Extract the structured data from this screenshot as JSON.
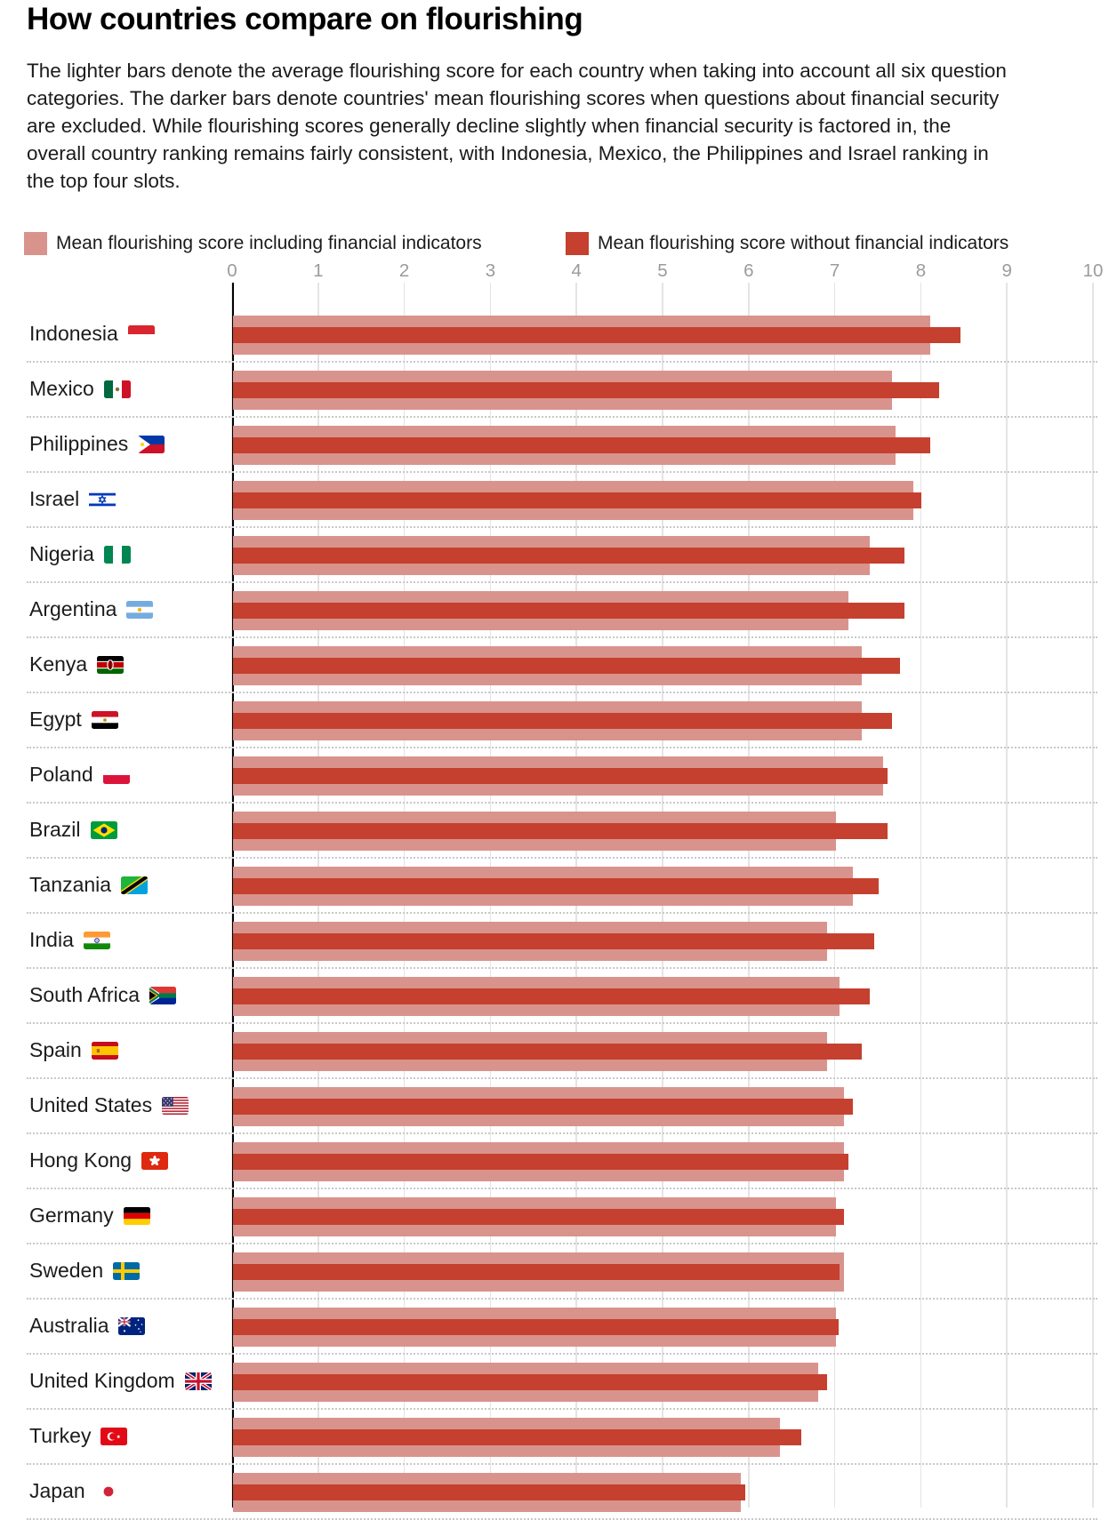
{
  "title": "How countries compare on flourishing",
  "description": "The lighter bars denote the average flourishing score for each country when taking into account all six question categories. The darker bars denote countries' mean flourishing scores when questions about financial security are excluded. While flourishing scores generally decline slightly when financial security is factored in, the overall country ranking remains fairly consistent, with Indonesia, Mexico, the Philippines and Israel ranking in the top four slots.",
  "legend": {
    "items": [
      {
        "label": "Mean flourishing score including financial indicators",
        "color": "#d9938d"
      },
      {
        "label": "Mean flourishing score without financial indicators",
        "color": "#c5402f"
      }
    ]
  },
  "colors": {
    "bar_light": "#d9938d",
    "bar_dark": "#c5402f",
    "axis_text": "#9b9b9b",
    "gridline": "#e4e4e4",
    "separator": "#c9c9c9",
    "axis_line": "#000000"
  },
  "chart_data": {
    "type": "bar",
    "orientation": "horizontal",
    "title": "How countries compare on flourishing",
    "x_axis": {
      "min": 0,
      "max": 10,
      "ticks": [
        0,
        1,
        2,
        3,
        4,
        5,
        6,
        7,
        8,
        9,
        10
      ],
      "grid": true
    },
    "legend_position": "top",
    "series": [
      {
        "name": "Mean flourishing score including financial indicators",
        "key": "score_including",
        "color": "#d9938d"
      },
      {
        "name": "Mean flourishing score without financial indicators",
        "key": "score_without",
        "color": "#c5402f"
      }
    ],
    "countries": [
      {
        "name": "Indonesia",
        "flag": "id",
        "score_including": 8.1,
        "score_without": 8.45
      },
      {
        "name": "Mexico",
        "flag": "mx",
        "score_including": 7.65,
        "score_without": 8.2
      },
      {
        "name": "Philippines",
        "flag": "ph",
        "score_including": 7.7,
        "score_without": 8.1
      },
      {
        "name": "Israel",
        "flag": "il",
        "score_including": 7.9,
        "score_without": 8.0
      },
      {
        "name": "Nigeria",
        "flag": "ng",
        "score_including": 7.4,
        "score_without": 7.8
      },
      {
        "name": "Argentina",
        "flag": "ar",
        "score_including": 7.15,
        "score_without": 7.8
      },
      {
        "name": "Kenya",
        "flag": "ke",
        "score_including": 7.3,
        "score_without": 7.75
      },
      {
        "name": "Egypt",
        "flag": "eg",
        "score_including": 7.3,
        "score_without": 7.65
      },
      {
        "name": "Poland",
        "flag": "pl",
        "score_including": 7.55,
        "score_without": 7.6
      },
      {
        "name": "Brazil",
        "flag": "br",
        "score_including": 7.0,
        "score_without": 7.6
      },
      {
        "name": "Tanzania",
        "flag": "tz",
        "score_including": 7.2,
        "score_without": 7.5
      },
      {
        "name": "India",
        "flag": "in",
        "score_including": 6.9,
        "score_without": 7.45
      },
      {
        "name": "South Africa",
        "flag": "za",
        "score_including": 7.05,
        "score_without": 7.4
      },
      {
        "name": "Spain",
        "flag": "es",
        "score_including": 6.9,
        "score_without": 7.3
      },
      {
        "name": "United States",
        "flag": "us",
        "score_including": 7.1,
        "score_without": 7.2
      },
      {
        "name": "Hong Kong",
        "flag": "hk",
        "score_including": 7.1,
        "score_without": 7.15
      },
      {
        "name": "Germany",
        "flag": "de",
        "score_including": 7.0,
        "score_without": 7.1
      },
      {
        "name": "Sweden",
        "flag": "se",
        "score_including": 7.1,
        "score_without": 7.05
      },
      {
        "name": "Australia",
        "flag": "au",
        "score_including": 7.0,
        "score_without": 7.03
      },
      {
        "name": "United Kingdom",
        "flag": "gb",
        "score_including": 6.8,
        "score_without": 6.9
      },
      {
        "name": "Turkey",
        "flag": "tr",
        "score_including": 6.35,
        "score_without": 6.6
      },
      {
        "name": "Japan",
        "flag": "jp",
        "score_including": 5.9,
        "score_without": 5.95
      }
    ]
  }
}
